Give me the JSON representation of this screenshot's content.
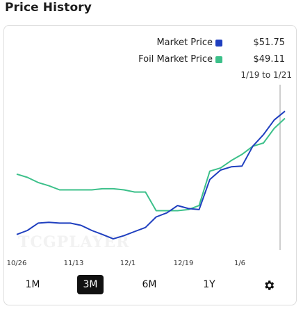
{
  "header": {
    "title": "Price History"
  },
  "legend": {
    "items": [
      {
        "label": "Market Price",
        "value": "$51.75",
        "color": "#1f3fbf"
      },
      {
        "label": "Foil Market Price",
        "value": "$49.11",
        "color": "#3cc08a"
      }
    ],
    "range_label": "1/19 to 1/21"
  },
  "watermark": "TCGPLAYER",
  "chart_data": {
    "type": "line",
    "x_tick_labels": [
      "10/26",
      "11/13",
      "12/1",
      "12/19",
      "1/6"
    ],
    "ylim": [
      0,
      60
    ],
    "grid": false,
    "hover_marker": "1/19 to 1/21",
    "series": [
      {
        "name": "Market Price",
        "color": "#1f3fbf",
        "values": [
          6.2,
          7.7,
          10.4,
          10.7,
          10.4,
          10.4,
          9.6,
          7.7,
          6.2,
          4.6,
          5.8,
          7.3,
          8.8,
          12.7,
          14.2,
          16.9,
          15.8,
          15.4,
          26.5,
          30.0,
          31.2,
          31.5,
          38.8,
          43.1,
          48.5,
          51.75
        ]
      },
      {
        "name": "Foil Market Price",
        "color": "#3cc08a",
        "values": [
          28.5,
          27.3,
          25.4,
          24.2,
          22.7,
          22.7,
          22.7,
          22.7,
          23.1,
          23.1,
          22.7,
          21.9,
          21.9,
          15.0,
          15.0,
          15.0,
          15.4,
          16.9,
          29.6,
          30.8,
          33.5,
          35.8,
          38.8,
          40.0,
          45.4,
          49.11
        ]
      }
    ]
  },
  "tabs": [
    {
      "label": "1M",
      "active": false
    },
    {
      "label": "3M",
      "active": true
    },
    {
      "label": "6M",
      "active": false
    },
    {
      "label": "1Y",
      "active": false
    }
  ]
}
